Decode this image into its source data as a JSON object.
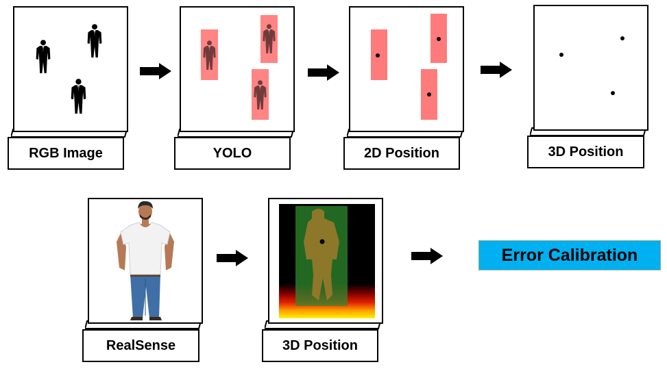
{
  "steps": {
    "rgb_image": "RGB Image",
    "yolo": "YOLO",
    "position_2d": "2D Position",
    "position_3d": "3D Position",
    "realsense": "RealSense",
    "position_3d_depth": "3D Position"
  },
  "callout": {
    "label": "Error Calibration"
  },
  "colors": {
    "detection_box": "#ff6f6f",
    "callout_fill": "#00b0f0",
    "depth_box": "#2e8b2e"
  },
  "icons": [
    "person-silhouette-icon",
    "arrow-right-icon",
    "person-photo-icon",
    "depth-map-icon",
    "center-point-icon"
  ]
}
